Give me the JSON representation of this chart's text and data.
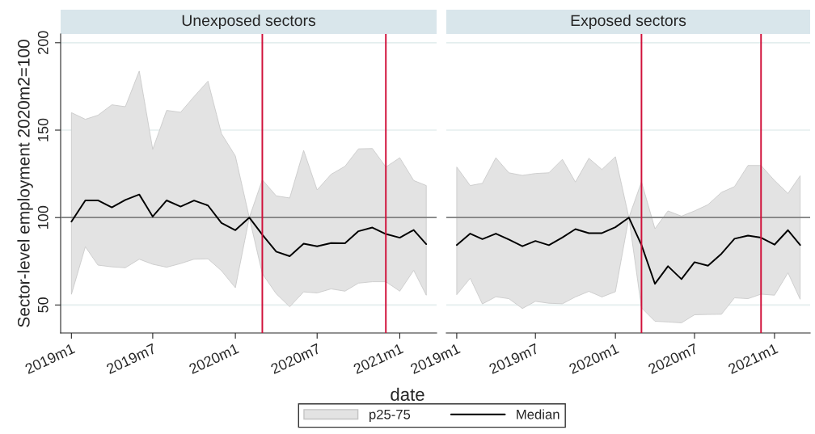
{
  "chart_data": [
    {
      "type": "line",
      "title": "Unexposed sectors",
      "xlabel": "date",
      "ylabel": "Sector-level employment 2020m2=100",
      "x": [
        "2019-01",
        "2019-02",
        "2019-03",
        "2019-04",
        "2019-05",
        "2019-06",
        "2019-07",
        "2019-08",
        "2019-09",
        "2019-10",
        "2019-11",
        "2019-12",
        "2020-01",
        "2020-02",
        "2020-03",
        "2020-04",
        "2020-05",
        "2020-06",
        "2020-07",
        "2020-08",
        "2020-09",
        "2020-10",
        "2020-11",
        "2020-12",
        "2021-01",
        "2021-02",
        "2021-03"
      ],
      "series": [
        {
          "name": "Median",
          "type": "line",
          "color": "#000000",
          "values": [
            97.7,
            109.8,
            109.8,
            105.8,
            110.1,
            113.2,
            100.6,
            109.8,
            106.3,
            109.7,
            106.9,
            96.9,
            92.8,
            100,
            90.2,
            80.5,
            77.9,
            85.1,
            83.6,
            85.4,
            85.3,
            92.2,
            94.3,
            90.6,
            88.5,
            92.9,
            84.8
          ],
          "lower": [
            56.1,
            83.3,
            72.8,
            71.8,
            71.3,
            76.2,
            73.3,
            71.6,
            73.7,
            76.2,
            76.4,
            69.6,
            59.9,
            100,
            67.9,
            56.4,
            49,
            57.5,
            56.9,
            59.2,
            57.9,
            62.5,
            63.3,
            63.3,
            57.9,
            69.8,
            55.6
          ],
          "upper": [
            160,
            156.2,
            158.5,
            164.5,
            163.4,
            183.8,
            139,
            161.3,
            160.2,
            169.2,
            178,
            148,
            135.2,
            100,
            121.6,
            112.4,
            111.2,
            138.4,
            115.8,
            124.7,
            129.3,
            139.3,
            139.5,
            128.9,
            134.2,
            121.2,
            118.3
          ]
        }
      ],
      "xlim": [
        "2018-12-08",
        "2021-03-24"
      ],
      "xticks": [
        {
          "value": "2019-01",
          "label": "2019m1"
        },
        {
          "value": "2019-07",
          "label": "2019m7"
        },
        {
          "value": "2020-01",
          "label": "2020m1"
        },
        {
          "value": "2020-07",
          "label": "2020m7"
        },
        {
          "value": "2021-01",
          "label": "2021m1"
        }
      ],
      "ylim": [
        34,
        205
      ],
      "yticks": [
        50,
        100,
        150,
        200
      ],
      "grid": "y",
      "ref_lines": [
        {
          "axis": "y",
          "value": 100,
          "color": "#808080"
        },
        {
          "axis": "x",
          "value": "2020-03",
          "color": "#d0103a"
        },
        {
          "axis": "x",
          "value": "2020-12",
          "color": "#d0103a"
        }
      ],
      "legend": "bottom",
      "annotations": [
        "p25-75"
      ]
    },
    {
      "type": "line",
      "title": "Exposed sectors",
      "x": [
        "2019-01",
        "2019-02",
        "2019-03",
        "2019-04",
        "2019-05",
        "2019-06",
        "2019-07",
        "2019-08",
        "2019-09",
        "2019-10",
        "2019-11",
        "2019-12",
        "2020-01",
        "2020-02",
        "2020-03",
        "2020-04",
        "2020-05",
        "2020-06",
        "2020-07",
        "2020-08",
        "2020-09",
        "2020-10",
        "2020-11",
        "2020-12",
        "2021-01",
        "2021-02",
        "2021-03"
      ],
      "series": [
        {
          "type": "line",
          "color": "#000000",
          "values": [
            84.3,
            90.8,
            87.7,
            90.8,
            87.4,
            83.6,
            86.6,
            84.2,
            88.6,
            93.4,
            91.1,
            91.1,
            94.5,
            100,
            84.3,
            62.1,
            72.2,
            64.8,
            74.5,
            72.5,
            79.3,
            87.9,
            89.7,
            88.5,
            84.5,
            92.8,
            84.3
          ],
          "lower": [
            55.9,
            65.3,
            50.6,
            54.7,
            53.6,
            48,
            52.1,
            51,
            50.7,
            54.6,
            57.8,
            54.6,
            57.6,
            100,
            48.4,
            40.7,
            40.3,
            39.8,
            44.4,
            44.6,
            44.7,
            54.1,
            53.6,
            56.2,
            55.6,
            68.4,
            53.3
          ],
          "upper": [
            128.9,
            118.3,
            119.6,
            134.2,
            125.6,
            124.1,
            125.2,
            125.6,
            133.3,
            120.3,
            133.9,
            127.5,
            134.8,
            100,
            120.4,
            93.6,
            103.8,
            100.8,
            103.8,
            107.4,
            114.4,
            117.7,
            129.8,
            129.8,
            121.2,
            113.8,
            123.9
          ]
        }
      ],
      "xlim": [
        "2018-12-08",
        "2021-03-24"
      ],
      "xticks": [
        {
          "value": "2019-01",
          "label": "2019m1"
        },
        {
          "value": "2019-07",
          "label": "2019m7"
        },
        {
          "value": "2020-01",
          "label": "2020m1"
        },
        {
          "value": "2020-07",
          "label": "2020m7"
        },
        {
          "value": "2021-01",
          "label": "2021m1"
        }
      ],
      "ylim": [
        34,
        205
      ],
      "yticks": [
        50,
        100,
        150,
        200
      ],
      "grid": "y",
      "tick_labels": "x",
      "ref_lines": [
        {
          "axis": "y",
          "value": 100,
          "color": "#808080"
        },
        {
          "axis": "x",
          "value": "2020-03",
          "color": "#d0103a"
        },
        {
          "axis": "x",
          "value": "2020-12",
          "color": "#d0103a"
        }
      ]
    }
  ]
}
